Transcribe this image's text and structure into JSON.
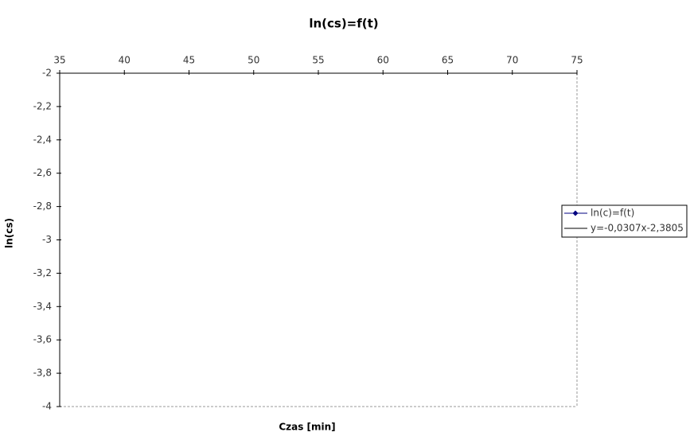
{
  "chart_data": {
    "type": "scatter",
    "title": "ln(cs)=f(t)",
    "x_label": "Czas [min]",
    "y_label": "ln(cs)",
    "x": [],
    "series": [
      {
        "name": "ln(c)=f(t)",
        "color": "#000080",
        "marker": "diamond",
        "values": []
      },
      {
        "name": "y=-0,0307x-2,3805",
        "color": "#000000",
        "values": []
      }
    ],
    "xlim": [
      35,
      75
    ],
    "xticks": [
      35,
      40,
      45,
      50,
      55,
      60,
      65,
      70,
      75
    ],
    "x_axis_position": "top",
    "ylim": [
      -4,
      -2
    ],
    "yticks": [
      -2,
      {
        "value": -2.2,
        "label": "-2,2"
      },
      {
        "value": -2.4,
        "label": "-2,4"
      },
      {
        "value": -2.6,
        "label": "-2,6"
      },
      {
        "value": -2.8,
        "label": "-2,8"
      },
      -3,
      {
        "value": -3.2,
        "label": "-3,2"
      },
      {
        "value": -3.4,
        "label": "-3,4"
      },
      {
        "value": -3.6,
        "label": "-3,6"
      },
      {
        "value": -3.8,
        "label": "-3,8"
      },
      -4
    ],
    "grid": false,
    "legend": "right"
  }
}
